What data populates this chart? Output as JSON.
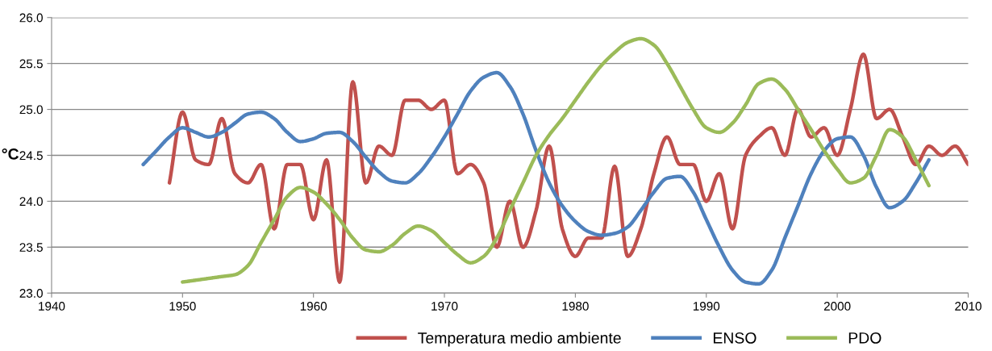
{
  "chart_data": {
    "type": "line",
    "ylabel": "°C",
    "xlim": [
      1940,
      2010
    ],
    "xticks": [
      1940,
      1950,
      1960,
      1970,
      1980,
      1990,
      2000,
      2010
    ],
    "ylim": [
      23.0,
      26.0
    ],
    "yticks": [
      {
        "value": 23.0,
        "label": "23.0"
      },
      {
        "value": 23.5,
        "label": "23.5"
      },
      {
        "value": 24.0,
        "label": "24.0"
      },
      {
        "value": 24.5,
        "label": "24.5"
      },
      {
        "value": 25.0,
        "label": "25.0"
      },
      {
        "value": 25.5,
        "label": "25.5"
      },
      {
        "value": 26.0,
        "label": "26.0"
      }
    ],
    "grid": "y",
    "legend": "bottom",
    "marker": "none",
    "line_style": "solid",
    "series": [
      {
        "name": "Temperatura medio ambiente",
        "color": "#c0504d",
        "x": [
          1949,
          1950,
          1951,
          1952,
          1953,
          1954,
          1955,
          1956,
          1957,
          1958,
          1959,
          1960,
          1961,
          1962,
          1963,
          1964,
          1965,
          1966,
          1967,
          1968,
          1969,
          1970,
          1971,
          1972,
          1973,
          1974,
          1975,
          1976,
          1977,
          1978,
          1979,
          1980,
          1981,
          1982,
          1983,
          1984,
          1985,
          1986,
          1987,
          1988,
          1989,
          1990,
          1991,
          1992,
          1993,
          1994,
          1995,
          1996,
          1997,
          1998,
          1999,
          2000,
          2001,
          2002,
          2003,
          2004,
          2005,
          2006,
          2007,
          2008,
          2009,
          2010
        ],
        "values": [
          24.2,
          24.97,
          24.45,
          24.4,
          24.9,
          24.3,
          24.2,
          24.4,
          23.7,
          24.4,
          24.4,
          23.8,
          24.45,
          23.12,
          25.3,
          24.2,
          24.6,
          24.5,
          25.1,
          25.1,
          25.0,
          25.1,
          24.3,
          24.4,
          24.2,
          23.5,
          24.0,
          23.5,
          23.9,
          24.6,
          23.7,
          23.4,
          23.6,
          23.6,
          24.38,
          23.4,
          23.7,
          24.3,
          24.7,
          24.4,
          24.4,
          24.0,
          24.3,
          23.7,
          24.5,
          24.7,
          24.8,
          24.5,
          25.0,
          24.7,
          24.8,
          24.5,
          25.0,
          25.6,
          24.9,
          25.0,
          24.7,
          24.4,
          24.6,
          24.5,
          24.6,
          24.4
        ]
      },
      {
        "name": "ENSO",
        "color": "#4f81bd",
        "x": [
          1947,
          1948,
          1949,
          1950,
          1951,
          1952,
          1953,
          1954,
          1955,
          1956,
          1957,
          1958,
          1959,
          1960,
          1961,
          1962,
          1963,
          1964,
          1965,
          1966,
          1967,
          1968,
          1969,
          1970,
          1971,
          1972,
          1973,
          1974,
          1975,
          1976,
          1977,
          1978,
          1979,
          1980,
          1981,
          1982,
          1983,
          1984,
          1985,
          1986,
          1987,
          1988,
          1989,
          1990,
          1991,
          1992,
          1993,
          1994,
          1995,
          1996,
          1997,
          1998,
          1999,
          2000,
          2001,
          2002,
          2003,
          2004,
          2005,
          2006,
          2007
        ],
        "values": [
          24.4,
          24.55,
          24.7,
          24.8,
          24.75,
          24.7,
          24.75,
          24.85,
          24.95,
          24.97,
          24.9,
          24.75,
          24.65,
          24.68,
          24.74,
          24.75,
          24.65,
          24.48,
          24.32,
          24.22,
          24.2,
          24.3,
          24.48,
          24.7,
          24.95,
          25.2,
          25.35,
          25.4,
          25.25,
          24.95,
          24.55,
          24.2,
          23.95,
          23.78,
          23.67,
          23.63,
          23.65,
          23.72,
          23.9,
          24.1,
          24.25,
          24.27,
          24.1,
          23.8,
          23.5,
          23.25,
          23.12,
          23.1,
          23.25,
          23.6,
          23.95,
          24.3,
          24.55,
          24.68,
          24.7,
          24.5,
          24.15,
          23.93,
          24.0,
          24.2,
          24.45
        ]
      },
      {
        "name": "PDO",
        "color": "#9bbb59",
        "x": [
          1950,
          1951,
          1952,
          1953,
          1954,
          1955,
          1956,
          1957,
          1958,
          1959,
          1960,
          1961,
          1962,
          1963,
          1964,
          1965,
          1966,
          1967,
          1968,
          1969,
          1970,
          1971,
          1972,
          1973,
          1974,
          1975,
          1976,
          1977,
          1978,
          1979,
          1980,
          1981,
          1982,
          1983,
          1984,
          1985,
          1986,
          1987,
          1988,
          1989,
          1990,
          1991,
          1992,
          1993,
          1994,
          1995,
          1996,
          1997,
          1998,
          1999,
          2000,
          2001,
          2002,
          2003,
          2004,
          2005,
          2006,
          2007
        ],
        "values": [
          23.12,
          23.14,
          23.16,
          23.18,
          23.2,
          23.3,
          23.55,
          23.8,
          24.05,
          24.15,
          24.1,
          23.97,
          23.8,
          23.6,
          23.47,
          23.45,
          23.52,
          23.65,
          23.73,
          23.68,
          23.55,
          23.42,
          23.33,
          23.4,
          23.6,
          23.9,
          24.2,
          24.5,
          24.72,
          24.9,
          25.1,
          25.3,
          25.48,
          25.62,
          25.73,
          25.77,
          25.7,
          25.5,
          25.25,
          25.0,
          24.8,
          24.75,
          24.85,
          25.05,
          25.28,
          25.33,
          25.22,
          25.0,
          24.78,
          24.55,
          24.35,
          24.2,
          24.25,
          24.5,
          24.78,
          24.7,
          24.45,
          24.17
        ]
      }
    ]
  }
}
